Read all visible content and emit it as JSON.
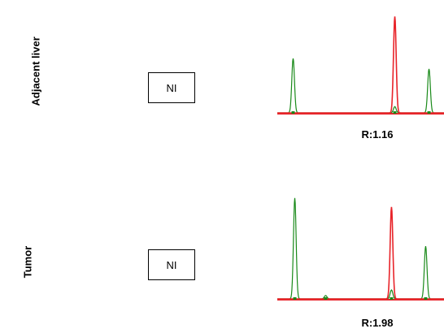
{
  "rows": [
    {
      "label": "Adjacent liver",
      "box_text": "NI",
      "ratio_text": "R:1.16"
    },
    {
      "label": "Tumor",
      "box_text": "NI",
      "ratio_text": "R:1.98"
    }
  ],
  "colors": {
    "green": "#1a8a1a",
    "red": "#e8242a"
  },
  "chart_data": [
    {
      "type": "line",
      "title": "",
      "xlabel": "",
      "ylabel": "",
      "annotation": "R:1.16",
      "series": [
        {
          "color": "#1a8a1a",
          "peaks": [
            {
              "x": 0.095,
              "height": 0.52
            },
            {
              "x": 0.705,
              "height": 0.06
            },
            {
              "x": 0.91,
              "height": 0.42
            }
          ]
        },
        {
          "color": "#e8242a",
          "peaks": [
            {
              "x": 0.705,
              "height": 0.92
            }
          ]
        }
      ],
      "ylim": [
        0,
        1
      ]
    },
    {
      "type": "line",
      "title": "",
      "xlabel": "",
      "ylabel": "",
      "annotation": "R:1.98",
      "series": [
        {
          "color": "#1a8a1a",
          "peaks": [
            {
              "x": 0.105,
              "height": 0.9
            },
            {
              "x": 0.29,
              "height": 0.03
            },
            {
              "x": 0.685,
              "height": 0.08
            },
            {
              "x": 0.89,
              "height": 0.47
            }
          ]
        },
        {
          "color": "#e8242a",
          "peaks": [
            {
              "x": 0.685,
              "height": 0.82
            }
          ]
        }
      ],
      "ylim": [
        0,
        1
      ]
    }
  ]
}
